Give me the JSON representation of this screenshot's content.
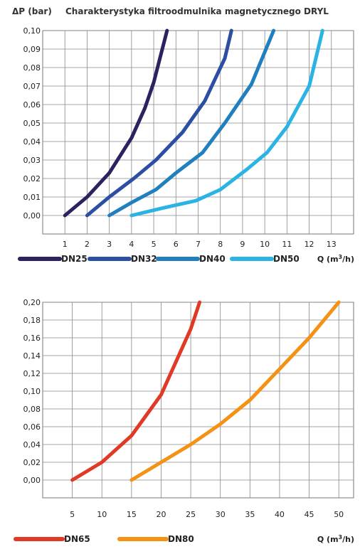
{
  "header": {
    "ylabel": "ΔP (bar)",
    "title": "Charakterystyka filtroodmulnika magnetycznego DRYL"
  },
  "chart_data": [
    {
      "type": "line",
      "title": "Charakterystyka filtroodmulnika magnetycznego DRYL",
      "ylabel": "ΔP (bar)",
      "xlabel": "Q (m³/h)",
      "xlabel_base": "Q (m",
      "xlabel_sup": "3",
      "xlabel_end": "/h)",
      "xlim": [
        0,
        14
      ],
      "ylim": [
        -0.01,
        0.1
      ],
      "x_ticks": [
        1,
        2,
        3,
        4,
        5,
        6,
        7,
        8,
        9,
        10,
        11,
        12,
        13
      ],
      "y_ticks": [
        "0,00",
        "0,01",
        "0,02",
        "0,03",
        "0,04",
        "0,05",
        "0,06",
        "0,07",
        "0,08",
        "0,09",
        "0,10"
      ],
      "y_tick_values": [
        0.0,
        0.01,
        0.02,
        0.03,
        0.04,
        0.05,
        0.06,
        0.07,
        0.08,
        0.09,
        0.1
      ],
      "grid": true,
      "legend_position": "bottom",
      "series": [
        {
          "name": "DN25",
          "color": "#2b2360",
          "x": [
            1.0,
            2.0,
            3.0,
            4.0,
            4.6,
            5.0,
            5.6
          ],
          "y": [
            0.0,
            0.01,
            0.023,
            0.042,
            0.058,
            0.072,
            0.1
          ]
        },
        {
          "name": "DN32",
          "color": "#2c4ea3",
          "x": [
            2.0,
            3.0,
            4.1,
            5.1,
            6.3,
            7.3,
            8.2,
            8.5
          ],
          "y": [
            0.0,
            0.01,
            0.02,
            0.03,
            0.045,
            0.062,
            0.085,
            0.1
          ]
        },
        {
          "name": "DN40",
          "color": "#1f7fbf",
          "x": [
            3.0,
            4.0,
            5.1,
            6.0,
            7.2,
            8.2,
            9.4,
            10.4
          ],
          "y": [
            0.0,
            0.007,
            0.014,
            0.023,
            0.034,
            0.05,
            0.071,
            0.1
          ]
        },
        {
          "name": "DN50",
          "color": "#2ab3e3",
          "x": [
            4.0,
            5.4,
            6.9,
            8.0,
            9.2,
            10.1,
            11.0,
            12.0,
            12.6
          ],
          "y": [
            0.0,
            0.004,
            0.008,
            0.014,
            0.025,
            0.034,
            0.048,
            0.07,
            0.1
          ]
        }
      ]
    },
    {
      "type": "line",
      "xlabel": "Q (m³/h)",
      "xlabel_base": "Q (m",
      "xlabel_sup": "3",
      "xlabel_end": "/h)",
      "xlim": [
        0,
        52.5
      ],
      "ylim": [
        -0.02,
        0.2
      ],
      "x_ticks": [
        5,
        10,
        15,
        20,
        25,
        30,
        35,
        40,
        45,
        50
      ],
      "y_ticks": [
        "0,00",
        "0,02",
        "0,04",
        "0,06",
        "0,08",
        "0,10",
        "0,12",
        "0,14",
        "0,16",
        "0,18",
        "0,20"
      ],
      "y_tick_values": [
        0.0,
        0.02,
        0.04,
        0.06,
        0.08,
        0.1,
        0.12,
        0.14,
        0.16,
        0.18,
        0.2
      ],
      "grid": true,
      "legend_position": "bottom",
      "series": [
        {
          "name": "DN65",
          "color": "#e03a26",
          "x": [
            5.0,
            10.0,
            15.0,
            20.0,
            25.0,
            26.5
          ],
          "y": [
            0.0,
            0.02,
            0.05,
            0.096,
            0.17,
            0.2
          ]
        },
        {
          "name": "DN80",
          "color": "#f39214",
          "x": [
            15.0,
            20.0,
            25.0,
            30.0,
            35.0,
            40.0,
            45.0,
            50.0
          ],
          "y": [
            0.0,
            0.02,
            0.04,
            0.063,
            0.09,
            0.125,
            0.16,
            0.2
          ]
        }
      ]
    }
  ]
}
